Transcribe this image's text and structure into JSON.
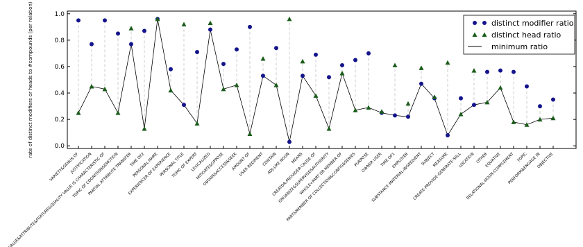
{
  "chart_data": {
    "type": "dot",
    "y_label": "rate of distinct modifiers or heads to #compounds (per relation)",
    "categories": [
      "VARIETY&GENUS OF",
      "JUSTIFICATION",
      "VALUE&ATTRIBUTE&FEATURE&QUALITY VALUE IS CHARACTERISTIC OF",
      "TOPIC OF COGNITION&EMOTION",
      "PARTIAL ATTRIBUTE TRANSFER",
      "TIME OF2",
      "PERSONAL NAME",
      "EXPERIENCER OF EXPERIENCE",
      "PERSONAL TITLE",
      "TOPIC OF EXPERT",
      "LEXICALIZED",
      "MITIGATE&OPPOSE",
      "OBTAIN&ACCESS&SEEK",
      "AMOUNT OF",
      "USER RECIPIENT",
      "CONTAIN",
      "ADJ-LIKE NOUN",
      "MEANS",
      "CREATOR-PROVIDER-CAUSE OF",
      "ORGANIZE&SUPERVISE&AUTHORITY",
      "WHOLE+PART OR MEMBER OF",
      "PART&MEMBER OF COLLECTION&CONFIG&SERIES",
      "PURPOSE",
      "OWNER USER",
      "TIME OF1",
      "EMPLOYER",
      "SUBSTANCE-MATERIAL-INGREDIENT",
      "SUBJECT",
      "MEASURE",
      "CREATE-PROVIDE-GENERATE-SELL",
      "LOCATION",
      "OTHER",
      "EQUATIVE",
      "RELATIONAL-NOUN-COMPLEMENT",
      "TOPIC",
      "PERFORM&ENGAGE IN",
      "OBJECTIVE"
    ],
    "series": [
      {
        "name": "distinct modifier ratio",
        "color": "#14148c",
        "marker": "circle",
        "values": [
          0.95,
          0.77,
          0.95,
          0.85,
          0.77,
          0.87,
          0.96,
          0.58,
          0.31,
          0.71,
          0.88,
          0.62,
          0.73,
          0.9,
          0.53,
          0.74,
          0.03,
          0.53,
          0.69,
          0.52,
          0.61,
          0.65,
          0.7,
          0.25,
          0.23,
          0.22,
          0.47,
          0.36,
          0.08,
          0.36,
          0.31,
          0.56,
          0.57,
          0.56,
          0.45,
          0.3,
          0.35
        ]
      },
      {
        "name": "distinct head ratio",
        "color": "#1a5c1a",
        "marker": "triangle",
        "values": [
          0.25,
          0.45,
          0.43,
          0.25,
          0.89,
          0.13,
          0.96,
          0.42,
          0.92,
          0.17,
          0.93,
          0.43,
          0.46,
          0.09,
          0.66,
          0.46,
          0.96,
          0.64,
          0.38,
          0.13,
          0.55,
          0.27,
          0.29,
          0.26,
          0.61,
          0.32,
          0.59,
          0.37,
          0.63,
          0.24,
          0.57,
          0.33,
          0.44,
          0.18,
          0.16,
          0.2,
          0.21
        ]
      },
      {
        "name": "minimum ratio",
        "color": "#000000",
        "marker": "line",
        "values": [
          0.25,
          0.45,
          0.43,
          0.25,
          0.77,
          0.13,
          0.96,
          0.42,
          0.31,
          0.17,
          0.88,
          0.43,
          0.46,
          0.09,
          0.53,
          0.46,
          0.03,
          0.53,
          0.38,
          0.13,
          0.55,
          0.27,
          0.29,
          0.25,
          0.23,
          0.22,
          0.47,
          0.36,
          0.08,
          0.24,
          0.31,
          0.33,
          0.44,
          0.18,
          0.16,
          0.2,
          0.21
        ]
      }
    ],
    "ylim": [
      -0.02,
      1.02
    ],
    "yticks": [
      {
        "value": 0,
        "label": "0.0"
      },
      {
        "value": 0.2,
        "label": "0.2"
      },
      {
        "value": 0.4,
        "label": "0.4"
      },
      {
        "value": 0.6,
        "label": "0.6"
      },
      {
        "value": 0.8,
        "label": "0.8"
      },
      {
        "value": 1,
        "label": "1.0"
      }
    ],
    "legend": "upper right"
  }
}
